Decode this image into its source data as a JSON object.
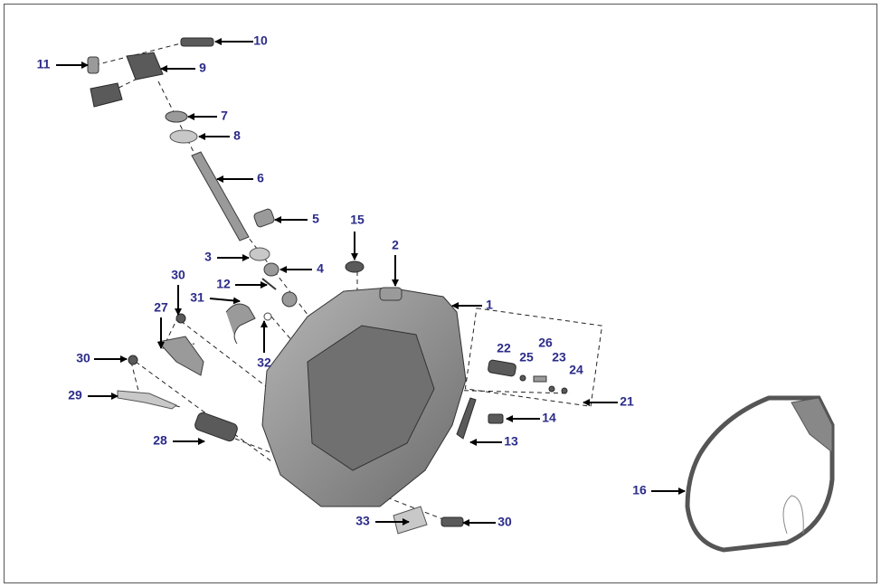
{
  "callouts": [
    "10",
    "11",
    "9",
    "7",
    "8",
    "6",
    "5",
    "15",
    "2",
    "3",
    "4",
    "30",
    "12",
    "1",
    "31",
    "27",
    "32",
    "22",
    "25",
    "26",
    "23",
    "24",
    "21",
    "30",
    "29",
    "14",
    "13",
    "28",
    "16",
    "33",
    "30"
  ]
}
